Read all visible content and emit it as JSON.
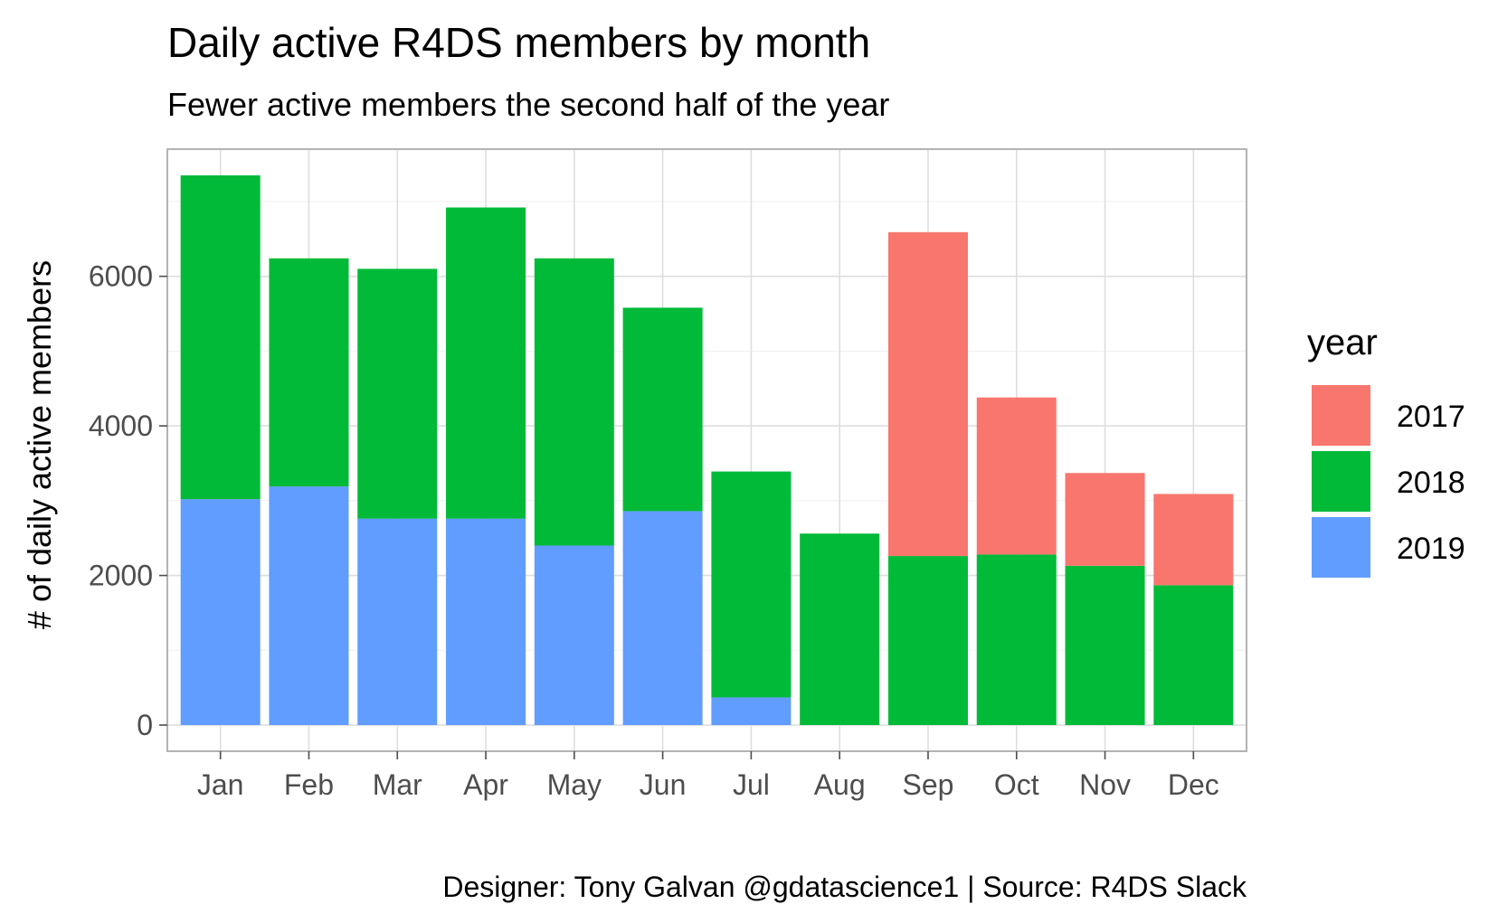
{
  "chart_data": {
    "type": "bar",
    "stacked": true,
    "title": "Daily active R4DS members by month",
    "subtitle": "Fewer active members the second half of the year",
    "caption": "Designer: Tony Galvan @gdatascience1  |  Source: R4DS Slack",
    "xlabel": "",
    "ylabel": "# of daily active members",
    "ylim": [
      -350,
      7700
    ],
    "yticks": [
      0,
      2000,
      4000,
      6000
    ],
    "ytick_labels": [
      "0",
      "2000",
      "4000",
      "6000"
    ],
    "grid": true,
    "legend_title": "year",
    "legend_position": "right",
    "categories": [
      "Jan",
      "Feb",
      "Mar",
      "Apr",
      "May",
      "Jun",
      "Jul",
      "Aug",
      "Sep",
      "Oct",
      "Nov",
      "Dec"
    ],
    "series": [
      {
        "name": "2019",
        "color": "#619CFF",
        "values": [
          3020,
          3190,
          2760,
          2760,
          2400,
          2860,
          370,
          0,
          0,
          0,
          0,
          0
        ]
      },
      {
        "name": "2018",
        "color": "#00BA38",
        "values": [
          4330,
          3050,
          3340,
          4160,
          3840,
          2720,
          3020,
          2560,
          2260,
          2280,
          2130,
          1870
        ]
      },
      {
        "name": "2017",
        "color": "#F8766D",
        "values": [
          0,
          0,
          0,
          0,
          0,
          0,
          0,
          0,
          4330,
          2100,
          1240,
          1220
        ]
      }
    ],
    "legend_order": [
      "2017",
      "2018",
      "2019"
    ]
  }
}
